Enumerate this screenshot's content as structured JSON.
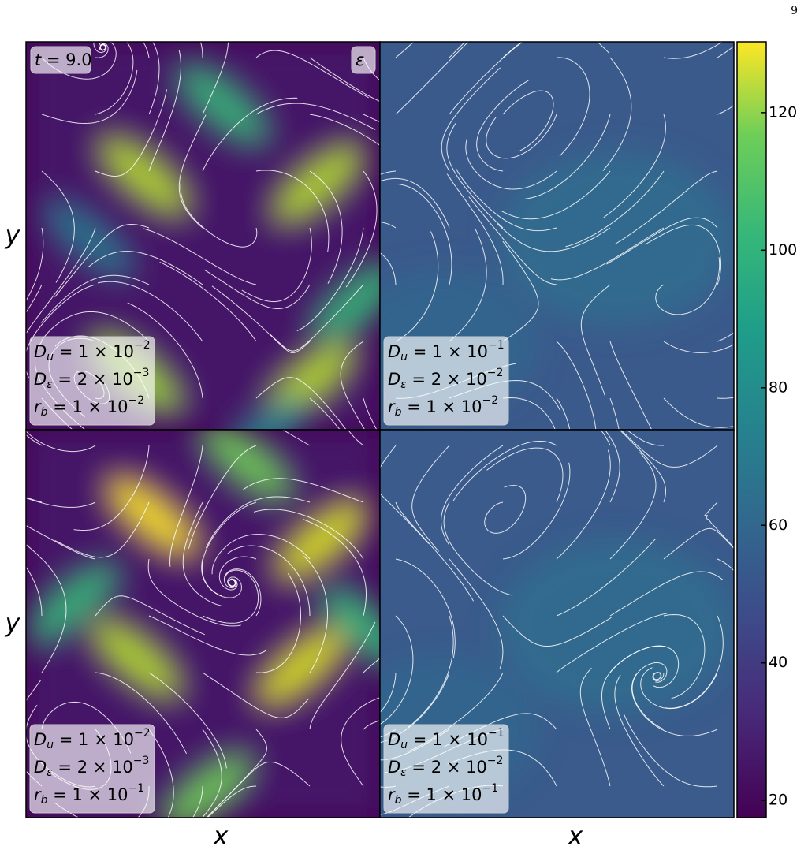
{
  "page_number": "9",
  "panels": [
    {
      "labels": [
        {
          "var": "t",
          "rest": " = 9.0"
        },
        {
          "var": "ε"
        }
      ],
      "params": [
        {
          "var": "D",
          "sub": "u",
          "coef": " = 1 × 10",
          "exp": "−2"
        },
        {
          "var": "D",
          "sub": "ε",
          "coef": " = 2 × 10",
          "exp": "−3"
        },
        {
          "var": "r",
          "sub": "b",
          "coef": " = 1 × 10",
          "exp": "−2"
        }
      ]
    },
    {
      "params": [
        {
          "var": "D",
          "sub": "u",
          "coef": " = 1 × 10",
          "exp": "−1"
        },
        {
          "var": "D",
          "sub": "ε",
          "coef": " = 2 × 10",
          "exp": "−2"
        },
        {
          "var": "r",
          "sub": "b",
          "coef": " = 1 × 10",
          "exp": "−2"
        }
      ]
    },
    {
      "params": [
        {
          "var": "D",
          "sub": "u",
          "coef": " = 1 × 10",
          "exp": "−2"
        },
        {
          "var": "D",
          "sub": "ε",
          "coef": " = 2 × 10",
          "exp": "−3"
        },
        {
          "var": "r",
          "sub": "b",
          "coef": " = 1 × 10",
          "exp": "−1"
        }
      ]
    },
    {
      "params": [
        {
          "var": "D",
          "sub": "u",
          "coef": " = 1 × 10",
          "exp": "−1"
        },
        {
          "var": "D",
          "sub": "ε",
          "coef": " = 2 × 10",
          "exp": "−2"
        },
        {
          "var": "r",
          "sub": "b",
          "coef": " = 1 × 10",
          "exp": "−1"
        }
      ]
    }
  ],
  "y_labels": [
    "y",
    "y"
  ],
  "x_labels": [
    "x",
    "x"
  ],
  "colorbar": {
    "lim": [
      17.5,
      130.3
    ],
    "ticks": [
      20,
      40,
      60,
      80,
      100,
      120
    ]
  }
}
